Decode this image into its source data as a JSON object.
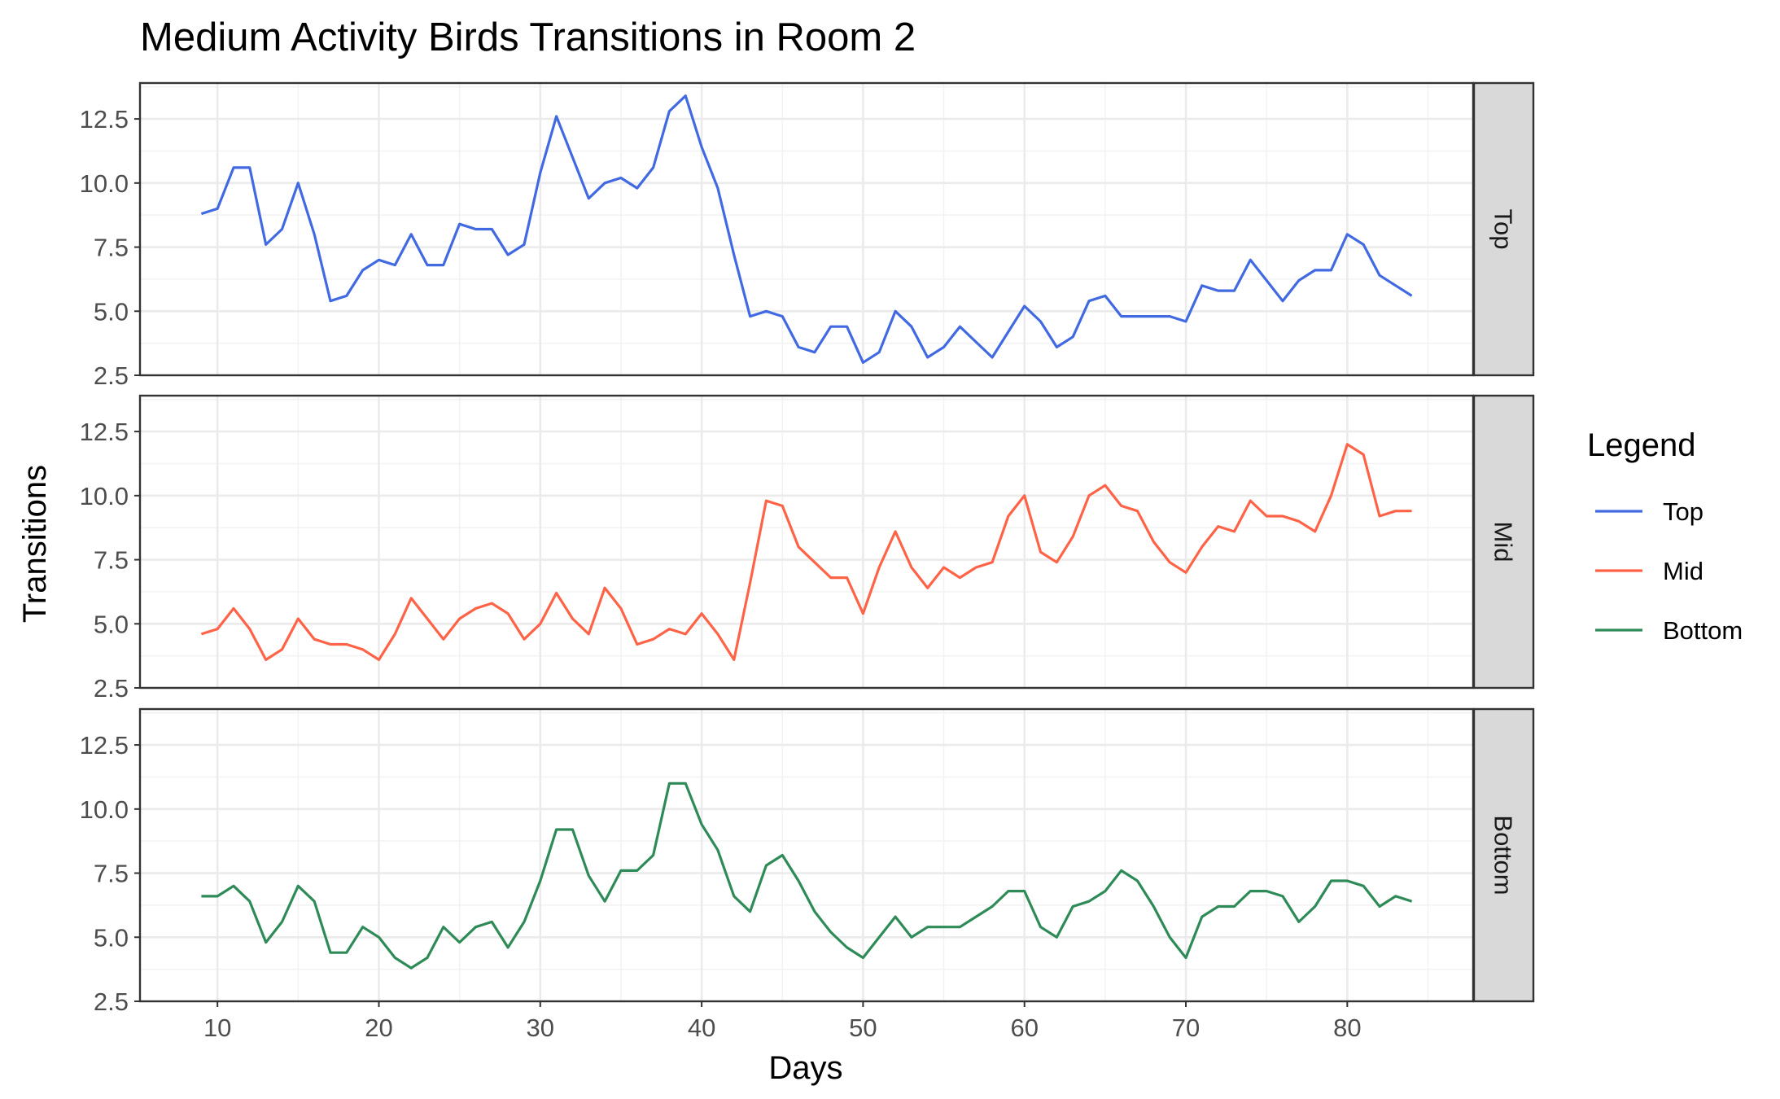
{
  "chart_data": {
    "type": "line",
    "title": "Medium Activity Birds Transitions in Room 2",
    "xlabel": "Days",
    "ylabel": "Transitions",
    "xlim": [
      5.2,
      87.8
    ],
    "ylim": [
      2.5,
      13.9
    ],
    "xticks": [
      10,
      20,
      30,
      40,
      50,
      60,
      70,
      80
    ],
    "yticks": [
      2.5,
      5.0,
      7.5,
      10.0,
      12.5
    ],
    "ytick_labels": [
      "2.5",
      "5.0",
      "7.5",
      "10.0",
      "12.5"
    ],
    "grid": true,
    "facets": [
      "Top",
      "Mid",
      "Bottom"
    ],
    "legend": {
      "title": "Legend",
      "position": "right",
      "entries": [
        "Top",
        "Mid",
        "Bottom"
      ]
    },
    "x": [
      9,
      10,
      11,
      12,
      13,
      14,
      15,
      16,
      17,
      18,
      19,
      20,
      21,
      22,
      23,
      24,
      25,
      26,
      27,
      28,
      29,
      30,
      31,
      32,
      33,
      34,
      35,
      36,
      37,
      38,
      39,
      40,
      41,
      42,
      43,
      44,
      45,
      46,
      47,
      48,
      49,
      50,
      51,
      52,
      53,
      54,
      55,
      56,
      57,
      58,
      59,
      60,
      61,
      62,
      63,
      64,
      65,
      66,
      67,
      68,
      69,
      70,
      71,
      72,
      73,
      74,
      75,
      76,
      77,
      78,
      79,
      80,
      81,
      82,
      83,
      84
    ],
    "series": [
      {
        "name": "Top",
        "color": "#4169E1",
        "values": [
          8.8,
          9.0,
          10.6,
          10.6,
          7.6,
          8.2,
          10.0,
          8.0,
          5.4,
          5.6,
          6.6,
          7.0,
          6.8,
          8.0,
          6.8,
          6.8,
          8.4,
          8.2,
          8.2,
          7.2,
          7.6,
          10.4,
          12.6,
          11.0,
          9.4,
          10.0,
          10.2,
          9.8,
          10.6,
          12.8,
          13.4,
          11.4,
          9.8,
          7.2,
          4.8,
          5.0,
          4.8,
          3.6,
          3.4,
          4.4,
          4.4,
          3.0,
          3.4,
          5.0,
          4.4,
          3.2,
          3.6,
          4.4,
          3.8,
          3.2,
          4.2,
          5.2,
          4.6,
          3.6,
          4.0,
          5.4,
          5.6,
          4.8,
          4.8,
          4.8,
          4.8,
          4.6,
          6.0,
          5.8,
          5.8,
          7.0,
          6.2,
          5.4,
          6.2,
          6.6,
          6.6,
          8.0,
          7.6,
          6.4,
          6.0,
          5.6
        ]
      },
      {
        "name": "Mid",
        "color": "#FF6347",
        "values": [
          4.6,
          4.8,
          5.6,
          4.8,
          3.6,
          4.0,
          5.2,
          4.4,
          4.2,
          4.2,
          4.0,
          3.6,
          4.6,
          6.0,
          5.2,
          4.4,
          5.2,
          5.6,
          5.8,
          5.4,
          4.4,
          5.0,
          6.2,
          5.2,
          4.6,
          6.4,
          5.6,
          4.2,
          4.4,
          4.8,
          4.6,
          5.4,
          4.6,
          3.6,
          6.6,
          9.8,
          9.6,
          8.0,
          7.4,
          6.8,
          6.8,
          5.4,
          7.2,
          8.6,
          7.2,
          6.4,
          7.2,
          6.8,
          7.2,
          7.4,
          9.2,
          10.0,
          7.8,
          7.4,
          8.4,
          10.0,
          10.4,
          9.6,
          9.4,
          8.2,
          7.4,
          7.0,
          8.0,
          8.8,
          8.6,
          9.8,
          9.2,
          9.2,
          9.0,
          8.6,
          10.0,
          12.0,
          11.6,
          9.2,
          9.4,
          9.4
        ]
      },
      {
        "name": "Bottom",
        "color": "#2E8B57",
        "values": [
          6.6,
          6.6,
          7.0,
          6.4,
          4.8,
          5.6,
          7.0,
          6.4,
          4.4,
          4.4,
          5.4,
          5.0,
          4.2,
          3.8,
          4.2,
          5.4,
          4.8,
          5.4,
          5.6,
          4.6,
          5.6,
          7.2,
          9.2,
          9.2,
          7.4,
          6.4,
          7.6,
          7.6,
          8.2,
          11.0,
          11.0,
          9.4,
          8.4,
          6.6,
          6.0,
          7.8,
          8.2,
          7.2,
          6.0,
          5.2,
          4.6,
          4.2,
          5.0,
          5.8,
          5.0,
          5.4,
          5.4,
          5.4,
          5.8,
          6.2,
          6.8,
          6.8,
          5.4,
          5.0,
          6.2,
          6.4,
          6.8,
          7.6,
          7.2,
          6.2,
          5.0,
          4.2,
          5.8,
          6.2,
          6.2,
          6.8,
          6.8,
          6.6,
          5.6,
          6.2,
          7.2,
          7.2,
          7.0,
          6.2,
          6.6,
          6.4
        ]
      }
    ]
  }
}
